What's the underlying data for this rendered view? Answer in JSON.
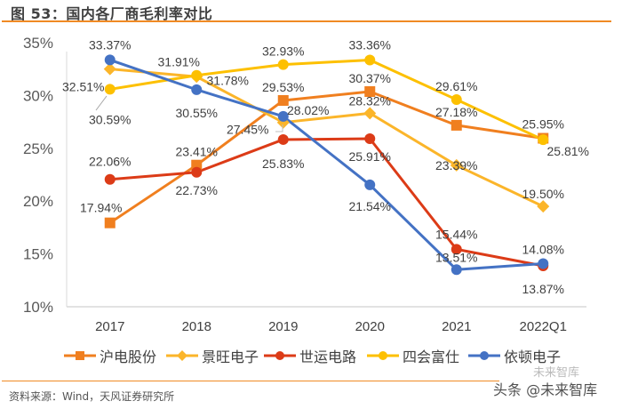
{
  "header": {
    "title": "图 53：国内各厂商毛利率对比"
  },
  "footer": {
    "source": "资料来源：Wind，天风证券研究所",
    "watermark": "头条 @未来智库",
    "watermark_faint": "未来智库"
  },
  "chart_data": {
    "type": "line",
    "title": "图 53：国内各厂商毛利率对比",
    "xlabel": "",
    "ylabel": "",
    "categories": [
      "2017",
      "2018",
      "2019",
      "2020",
      "2021",
      "2022Q1"
    ],
    "ylim": [
      10,
      35
    ],
    "yticks": [
      10,
      15,
      20,
      25,
      30,
      35
    ],
    "ytick_labels": [
      "10%",
      "15%",
      "20%",
      "25%",
      "30%",
      "35%"
    ],
    "grid": false,
    "legend_position": "bottom",
    "series": [
      {
        "name": "沪电股份",
        "color": "#f07f1f",
        "marker": "square",
        "values": [
          17.94,
          23.41,
          29.53,
          30.37,
          27.18,
          25.95
        ],
        "labels": [
          "17.94%",
          "23.41%",
          "29.53%",
          "30.37%",
          "27.18%",
          "25.95%"
        ]
      },
      {
        "name": "景旺电子",
        "color": "#fbb52a",
        "marker": "diamond",
        "values": [
          32.51,
          31.78,
          27.45,
          28.32,
          23.39,
          19.5
        ],
        "labels": [
          "32.51%",
          "31.78%",
          "27.45%",
          "28.32%",
          "23.39%",
          "19.50%"
        ]
      },
      {
        "name": "世运电路",
        "color": "#dc3b17",
        "marker": "circle",
        "values": [
          22.06,
          22.73,
          25.83,
          25.91,
          15.44,
          13.87
        ],
        "labels": [
          "22.06%",
          "22.73%",
          "25.83%",
          "25.91%",
          "15.44%",
          "13.87%"
        ]
      },
      {
        "name": "四会富仕",
        "color": "#fdc000",
        "marker": "circle",
        "values": [
          30.59,
          31.91,
          32.93,
          33.36,
          29.61,
          25.81
        ],
        "labels": [
          "30.59%",
          "31.91%",
          "32.93%",
          "33.36%",
          "29.61%",
          "25.81%"
        ]
      },
      {
        "name": "依顿电子",
        "color": "#4472c4",
        "marker": "circle",
        "values": [
          33.37,
          30.55,
          28.02,
          21.54,
          13.51,
          14.08
        ],
        "labels": [
          "33.37%",
          "30.55%",
          "28.02%",
          "21.54%",
          "13.51%",
          "14.08%"
        ]
      }
    ]
  }
}
